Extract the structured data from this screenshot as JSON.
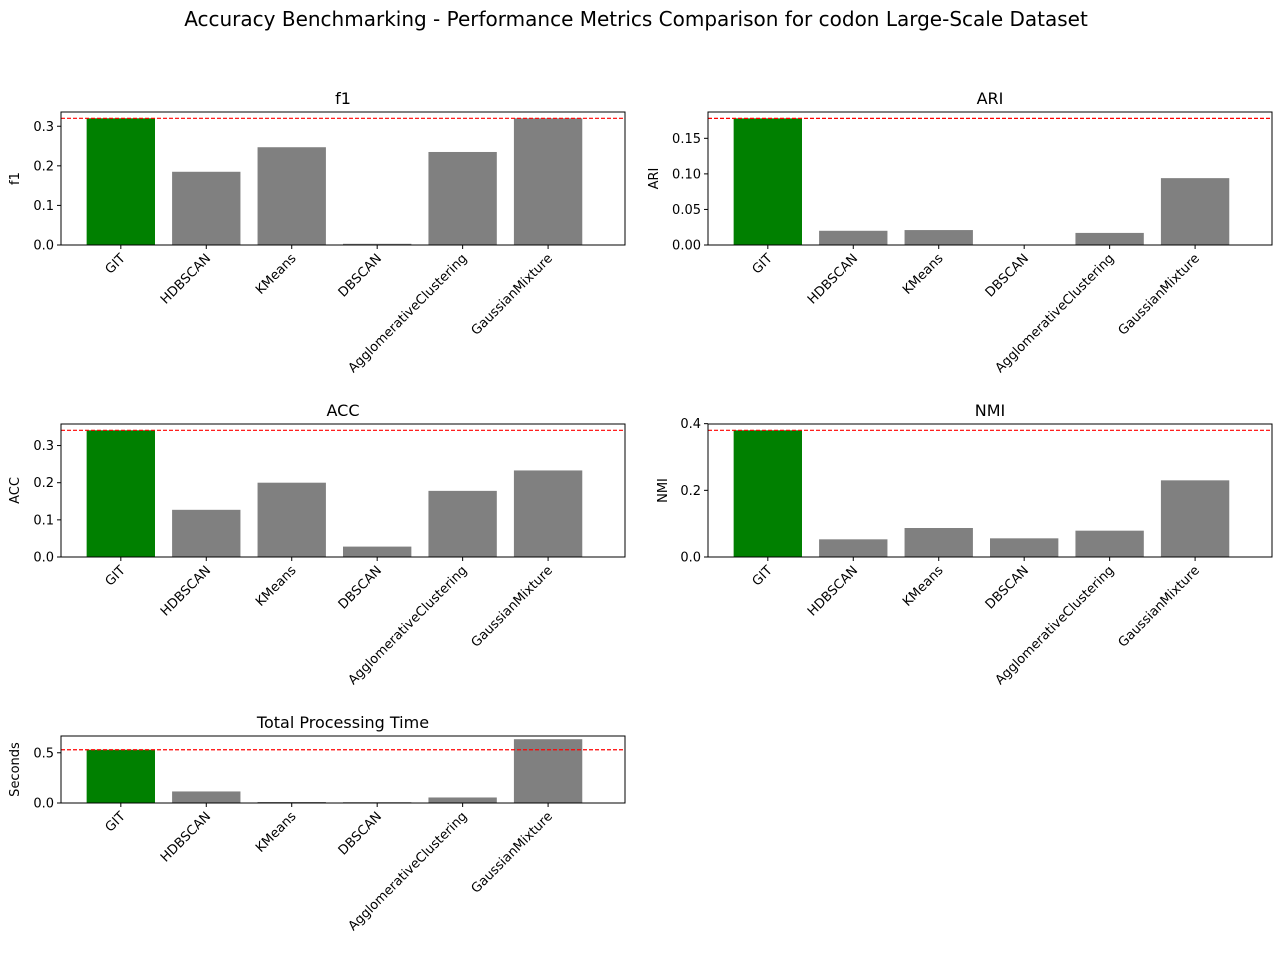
{
  "figure": {
    "title": "Accuracy Benchmarking - Performance Metrics Comparison for codon Large-Scale Dataset"
  },
  "colors": {
    "highlight": "#008000",
    "bar": "#808080",
    "reference_line": "#ff0000",
    "axes": "#000000",
    "background": "#ffffff"
  },
  "chart_data": [
    {
      "type": "bar",
      "title": "f1",
      "ylabel": "f1",
      "categories": [
        "GIT",
        "HDBSCAN",
        "KMeans",
        "DBSCAN",
        "AgglomerativeClustering",
        "GaussianMixture"
      ],
      "values": [
        0.32,
        0.185,
        0.247,
        0.003,
        0.235,
        0.32
      ],
      "ylim": [
        0,
        0.336
      ],
      "yticks": [
        0.0,
        0.1,
        0.2,
        0.3
      ],
      "ytick_labels": [
        "0.0",
        "0.1",
        "0.2",
        "0.3"
      ],
      "reference_line": 0.32,
      "highlight": "GIT",
      "grid": false
    },
    {
      "type": "bar",
      "title": "ARI",
      "ylabel": "ARI",
      "categories": [
        "GIT",
        "HDBSCAN",
        "KMeans",
        "DBSCAN",
        "AgglomerativeClustering",
        "GaussianMixture"
      ],
      "values": [
        0.178,
        0.02,
        0.021,
        0.0,
        0.017,
        0.094
      ],
      "ylim": [
        0,
        0.187
      ],
      "yticks": [
        0.0,
        0.05,
        0.1,
        0.15
      ],
      "ytick_labels": [
        "0.00",
        "0.05",
        "0.10",
        "0.15"
      ],
      "reference_line": 0.178,
      "highlight": "GIT",
      "grid": false
    },
    {
      "type": "bar",
      "title": "ACC",
      "ylabel": "ACC",
      "categories": [
        "GIT",
        "HDBSCAN",
        "KMeans",
        "DBSCAN",
        "AgglomerativeClustering",
        "GaussianMixture"
      ],
      "values": [
        0.341,
        0.127,
        0.2,
        0.028,
        0.178,
        0.233
      ],
      "ylim": [
        0,
        0.358
      ],
      "yticks": [
        0.0,
        0.1,
        0.2,
        0.3
      ],
      "ytick_labels": [
        "0.0",
        "0.1",
        "0.2",
        "0.3"
      ],
      "reference_line": 0.341,
      "highlight": "GIT",
      "grid": false
    },
    {
      "type": "bar",
      "title": "NMI",
      "ylabel": "NMI",
      "categories": [
        "GIT",
        "HDBSCAN",
        "KMeans",
        "DBSCAN",
        "AgglomerativeClustering",
        "GaussianMixture"
      ],
      "values": [
        0.38,
        0.053,
        0.087,
        0.056,
        0.079,
        0.23
      ],
      "ylim": [
        0,
        0.399
      ],
      "yticks": [
        0.0,
        0.2,
        0.4
      ],
      "ytick_labels": [
        "0.0",
        "0.2",
        "0.4"
      ],
      "reference_line": 0.38,
      "highlight": "GIT",
      "grid": false
    },
    {
      "type": "bar",
      "title": "Total Processing Time",
      "ylabel": "Seconds",
      "categories": [
        "GIT",
        "HDBSCAN",
        "KMeans",
        "DBSCAN",
        "AgglomerativeClustering",
        "GaussianMixture"
      ],
      "values": [
        0.53,
        0.115,
        0.01,
        0.008,
        0.055,
        0.635
      ],
      "ylim": [
        0,
        0.667
      ],
      "yticks": [
        0.0,
        0.5
      ],
      "ytick_labels": [
        "0.0",
        "0.5"
      ],
      "reference_line": 0.53,
      "highlight": "GIT",
      "grid": false
    }
  ]
}
